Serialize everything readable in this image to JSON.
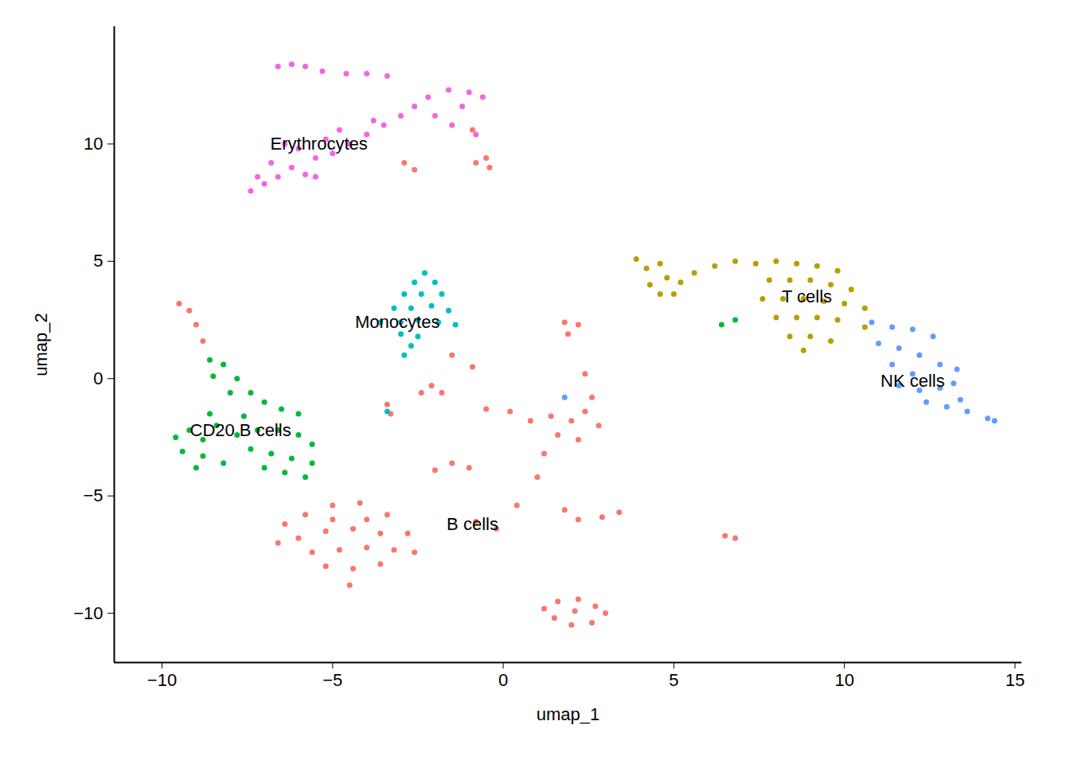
{
  "chart_data": {
    "type": "scatter",
    "x_label": "umap_1",
    "y_label": "umap_2",
    "xlim": [
      -11.4,
      15.2
    ],
    "ylim": [
      -12.1,
      15.0
    ],
    "xticks": [
      -10,
      -5,
      0,
      5,
      10,
      15
    ],
    "yticks": [
      -10,
      -5,
      0,
      5,
      10
    ],
    "grid": false,
    "series": [
      {
        "name": "B cells",
        "color": "#F8766D",
        "values": [
          [
            -9.5,
            3.2
          ],
          [
            -9.2,
            2.9
          ],
          [
            -9.0,
            2.3
          ],
          [
            -8.8,
            1.6
          ],
          [
            -6.4,
            -6.2
          ],
          [
            -5.8,
            -5.8
          ],
          [
            -5.0,
            -5.4
          ],
          [
            -4.2,
            -5.3
          ],
          [
            -3.4,
            -5.8
          ],
          [
            -2.8,
            -6.6
          ],
          [
            -6.6,
            -7.0
          ],
          [
            -6.0,
            -6.8
          ],
          [
            -5.2,
            -6.5
          ],
          [
            -4.4,
            -6.4
          ],
          [
            -3.6,
            -6.6
          ],
          [
            -5.6,
            -7.4
          ],
          [
            -4.8,
            -7.3
          ],
          [
            -4.0,
            -7.2
          ],
          [
            -3.2,
            -7.3
          ],
          [
            -5.2,
            -8.0
          ],
          [
            -4.4,
            -8.1
          ],
          [
            -3.6,
            -7.9
          ],
          [
            -4.5,
            -8.8
          ],
          [
            -2.6,
            -7.4
          ],
          [
            -5.0,
            -6.0
          ],
          [
            -4.0,
            -6.0
          ],
          [
            1.2,
            -9.8
          ],
          [
            1.6,
            -9.5
          ],
          [
            2.2,
            -9.4
          ],
          [
            2.7,
            -9.7
          ],
          [
            3.0,
            -10.0
          ],
          [
            1.5,
            -10.2
          ],
          [
            2.0,
            -10.5
          ],
          [
            2.6,
            -10.4
          ],
          [
            2.1,
            -9.9
          ],
          [
            -0.5,
            9.4
          ],
          [
            -0.4,
            9.0
          ],
          [
            -0.8,
            9.2
          ],
          [
            -2.9,
            9.2
          ],
          [
            -2.6,
            8.9
          ],
          [
            -0.9,
            10.6
          ],
          [
            1.8,
            2.4
          ],
          [
            2.2,
            2.3
          ],
          [
            1.9,
            1.9
          ],
          [
            -2.1,
            -0.3
          ],
          [
            -1.8,
            -0.6
          ],
          [
            -2.4,
            -0.6
          ],
          [
            -0.9,
            0.5
          ],
          [
            -1.5,
            1.0
          ],
          [
            -0.5,
            -1.3
          ],
          [
            0.2,
            -1.4
          ],
          [
            0.8,
            -1.8
          ],
          [
            1.4,
            -1.6
          ],
          [
            2.0,
            -1.8
          ],
          [
            2.4,
            -1.4
          ],
          [
            2.6,
            -0.8
          ],
          [
            2.4,
            0.2
          ],
          [
            2.8,
            -2.0
          ],
          [
            2.2,
            -2.6
          ],
          [
            1.6,
            -2.4
          ],
          [
            -2.0,
            -3.9
          ],
          [
            -1.5,
            -3.6
          ],
          [
            -1.0,
            -3.8
          ],
          [
            1.0,
            -4.2
          ],
          [
            1.2,
            -3.2
          ],
          [
            1.8,
            -5.6
          ],
          [
            2.2,
            -6.0
          ],
          [
            2.9,
            -5.9
          ],
          [
            3.4,
            -5.7
          ],
          [
            0.4,
            -5.4
          ],
          [
            -0.8,
            -6.1
          ],
          [
            -0.2,
            -6.4
          ],
          [
            6.5,
            -6.7
          ],
          [
            6.8,
            -6.8
          ],
          [
            -3.3,
            -1.5
          ],
          [
            -3.4,
            -1.1
          ]
        ]
      },
      {
        "name": "T cells",
        "color": "#B79F00",
        "values": [
          [
            3.9,
            5.1
          ],
          [
            4.2,
            4.7
          ],
          [
            4.6,
            4.9
          ],
          [
            4.3,
            4.0
          ],
          [
            4.8,
            4.3
          ],
          [
            5.2,
            4.1
          ],
          [
            4.6,
            3.6
          ],
          [
            5.0,
            3.6
          ],
          [
            5.6,
            4.5
          ],
          [
            6.2,
            4.8
          ],
          [
            6.8,
            5.0
          ],
          [
            7.4,
            4.9
          ],
          [
            8.0,
            5.0
          ],
          [
            8.6,
            4.9
          ],
          [
            9.2,
            4.8
          ],
          [
            9.8,
            4.6
          ],
          [
            7.8,
            4.2
          ],
          [
            8.4,
            4.2
          ],
          [
            9.0,
            4.2
          ],
          [
            9.6,
            4.0
          ],
          [
            10.2,
            3.8
          ],
          [
            7.6,
            3.4
          ],
          [
            8.2,
            3.4
          ],
          [
            8.8,
            3.4
          ],
          [
            9.4,
            3.3
          ],
          [
            10.0,
            3.2
          ],
          [
            10.6,
            3.0
          ],
          [
            8.0,
            2.6
          ],
          [
            8.6,
            2.6
          ],
          [
            9.2,
            2.6
          ],
          [
            9.8,
            2.5
          ],
          [
            8.4,
            1.8
          ],
          [
            9.0,
            1.8
          ],
          [
            9.6,
            1.6
          ],
          [
            8.8,
            1.2
          ],
          [
            10.6,
            2.2
          ]
        ]
      },
      {
        "name": "CD20 B cells",
        "color": "#00BA38",
        "values": [
          [
            -8.6,
            0.8
          ],
          [
            -8.2,
            0.6
          ],
          [
            -8.5,
            0.1
          ],
          [
            -7.8,
            0.0
          ],
          [
            -8.0,
            -0.6
          ],
          [
            -7.4,
            -0.6
          ],
          [
            -7.0,
            -1.0
          ],
          [
            -6.5,
            -1.3
          ],
          [
            -6.0,
            -1.5
          ],
          [
            -8.6,
            -1.5
          ],
          [
            -7.6,
            -1.6
          ],
          [
            -9.6,
            -2.5
          ],
          [
            -9.2,
            -2.2
          ],
          [
            -8.8,
            -2.6
          ],
          [
            -9.4,
            -3.1
          ],
          [
            -8.8,
            -3.3
          ],
          [
            -8.4,
            -2.0
          ],
          [
            -7.8,
            -2.4
          ],
          [
            -7.2,
            -2.2
          ],
          [
            -6.6,
            -2.2
          ],
          [
            -6.0,
            -2.4
          ],
          [
            -5.6,
            -2.8
          ],
          [
            -8.2,
            -3.6
          ],
          [
            -7.4,
            -3.0
          ],
          [
            -6.8,
            -3.2
          ],
          [
            -6.2,
            -3.4
          ],
          [
            -5.6,
            -3.6
          ],
          [
            -6.4,
            -4.0
          ],
          [
            -5.8,
            -4.2
          ],
          [
            -9.0,
            -3.8
          ],
          [
            -7.0,
            -3.8
          ],
          [
            6.8,
            2.5
          ],
          [
            6.4,
            2.3
          ]
        ]
      },
      {
        "name": "Monocytes",
        "color": "#00BFC4",
        "values": [
          [
            -2.3,
            4.5
          ],
          [
            -2.6,
            4.1
          ],
          [
            -2.0,
            4.1
          ],
          [
            -2.9,
            3.6
          ],
          [
            -2.4,
            3.6
          ],
          [
            -1.8,
            3.6
          ],
          [
            -3.2,
            3.0
          ],
          [
            -2.7,
            3.0
          ],
          [
            -2.1,
            3.1
          ],
          [
            -1.6,
            2.9
          ],
          [
            -3.6,
            2.4
          ],
          [
            -3.0,
            2.4
          ],
          [
            -2.5,
            2.5
          ],
          [
            -1.9,
            2.4
          ],
          [
            -1.4,
            2.3
          ],
          [
            -3.0,
            1.9
          ],
          [
            -2.7,
            1.4
          ],
          [
            -2.9,
            1.0
          ],
          [
            -2.5,
            1.8
          ],
          [
            -3.4,
            -1.4
          ]
        ]
      },
      {
        "name": "NK cells",
        "color": "#619CFF",
        "values": [
          [
            10.8,
            2.4
          ],
          [
            11.4,
            2.2
          ],
          [
            12.0,
            2.1
          ],
          [
            12.6,
            1.8
          ],
          [
            11.0,
            1.5
          ],
          [
            11.6,
            1.3
          ],
          [
            12.2,
            1.0
          ],
          [
            12.8,
            0.6
          ],
          [
            13.3,
            0.4
          ],
          [
            11.4,
            0.6
          ],
          [
            12.0,
            0.2
          ],
          [
            11.6,
            -0.3
          ],
          [
            12.2,
            -0.5
          ],
          [
            12.8,
            -0.4
          ],
          [
            13.2,
            -0.2
          ],
          [
            12.4,
            -1.0
          ],
          [
            13.0,
            -1.2
          ],
          [
            13.6,
            -1.4
          ],
          [
            14.2,
            -1.7
          ],
          [
            14.4,
            -1.8
          ],
          [
            13.4,
            -0.9
          ],
          [
            1.8,
            -0.8
          ]
        ]
      },
      {
        "name": "Erythrocytes",
        "color": "#F564E3",
        "values": [
          [
            -7.4,
            8.0
          ],
          [
            -7.0,
            8.3
          ],
          [
            -6.6,
            8.6
          ],
          [
            -6.8,
            9.2
          ],
          [
            -6.2,
            9.0
          ],
          [
            -5.8,
            8.7
          ],
          [
            -5.5,
            9.4
          ],
          [
            -6.0,
            9.8
          ],
          [
            -5.0,
            9.6
          ],
          [
            -4.5,
            10.0
          ],
          [
            -4.8,
            10.6
          ],
          [
            -4.0,
            10.4
          ],
          [
            -3.5,
            10.8
          ],
          [
            -3.0,
            11.2
          ],
          [
            -2.6,
            11.6
          ],
          [
            -2.2,
            12.0
          ],
          [
            -1.6,
            12.3
          ],
          [
            -1.0,
            12.2
          ],
          [
            -0.6,
            12.0
          ],
          [
            -1.2,
            11.6
          ],
          [
            -2.0,
            11.2
          ],
          [
            -1.5,
            10.8
          ],
          [
            -0.8,
            10.4
          ],
          [
            -3.8,
            11.0
          ],
          [
            -5.2,
            10.2
          ],
          [
            -6.4,
            10.0
          ],
          [
            -7.2,
            8.6
          ],
          [
            -5.5,
            8.6
          ],
          [
            -6.6,
            13.3
          ],
          [
            -6.2,
            13.4
          ],
          [
            -5.8,
            13.3
          ],
          [
            -5.3,
            13.1
          ],
          [
            -4.6,
            13.0
          ],
          [
            -4.0,
            13.0
          ],
          [
            -3.4,
            12.9
          ]
        ]
      }
    ],
    "annotations": [
      {
        "text": "Erythrocytes",
        "x": -5.4,
        "y": 10.0
      },
      {
        "text": "Monocytes",
        "x": -3.1,
        "y": 2.4
      },
      {
        "text": "T cells",
        "x": 8.9,
        "y": 3.5
      },
      {
        "text": "NK cells",
        "x": 12.0,
        "y": -0.1
      },
      {
        "text": "CD20 B cells",
        "x": -7.7,
        "y": -2.2
      },
      {
        "text": "B cells",
        "x": -0.9,
        "y": -6.2
      }
    ]
  }
}
